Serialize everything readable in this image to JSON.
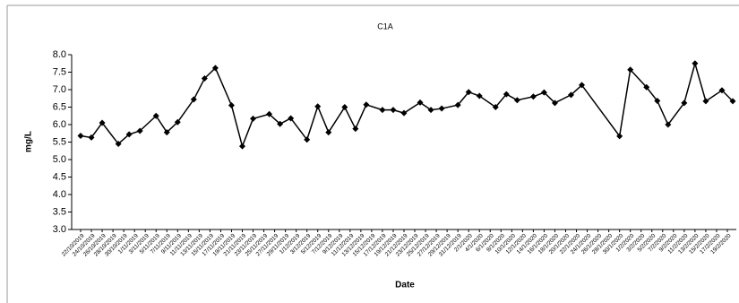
{
  "chart_data": {
    "type": "line",
    "title": "C1A",
    "x_label": "Date",
    "y_label": "mg/L",
    "x": [
      "22/10/2019",
      "24/10/2019",
      "26/10/2019",
      "29/10/2019",
      "31/10/2019",
      "2/11/2019",
      "5/11/2019",
      "7/11/2019",
      "9/11/2019",
      "12/11/2019",
      "14/11/2019",
      "16/11/2019",
      "19/11/2019",
      "21/11/2019",
      "23/11/2019",
      "26/11/2019",
      "28/11/2019",
      "30/11/2019",
      "3/12/2019",
      "5/12/2019",
      "7/12/2019",
      "10/12/2019",
      "12/12/2019",
      "14/12/2019",
      "17/12/2019",
      "19/12/2019",
      "21/12/2019",
      "24/12/2019",
      "26/12/2019",
      "28/12/2019",
      "31/12/2019",
      "2/1/2020",
      "4/1/2020",
      "7/1/2020",
      "9/1/2020",
      "11/1/2020",
      "14/1/2020",
      "16/1/2020",
      "18/1/2020",
      "21/1/2020",
      "23/1/2020",
      "30/1/2020",
      "1/2/2020",
      "4/2/2020",
      "6/2/2020",
      "8/2/2020",
      "11/2/2020",
      "13/2/2020",
      "15/2/2020",
      "18/2/2020",
      "20/2/2020"
    ],
    "series": [
      {
        "name": "C1A",
        "color": "#000000",
        "values": [
          5.68,
          5.63,
          6.05,
          5.45,
          5.72,
          5.82,
          6.25,
          5.78,
          6.07,
          6.72,
          7.32,
          7.62,
          6.55,
          5.38,
          6.17,
          6.3,
          6.02,
          6.18,
          5.57,
          6.52,
          5.78,
          6.5,
          5.88,
          6.57,
          6.42,
          6.42,
          6.33,
          6.63,
          6.42,
          6.46,
          6.56,
          6.93,
          6.82,
          6.5,
          6.87,
          6.7,
          6.8,
          6.92,
          6.62,
          6.85,
          7.13,
          5.67,
          7.57,
          7.07,
          6.68,
          6.0,
          6.62,
          7.75,
          6.67,
          6.98,
          6.67
        ]
      }
    ],
    "xlim": [
      "22/10/2019",
      "20/2/2020"
    ],
    "xticks": [
      "22/10/2019",
      "24/10/2019",
      "26/10/2019",
      "28/10/2019",
      "30/10/2019",
      "1/11/2019",
      "3/11/2019",
      "5/11/2019",
      "7/11/2019",
      "9/11/2019",
      "11/11/2019",
      "13/11/2019",
      "15/11/2019",
      "17/11/2019",
      "19/11/2019",
      "21/11/2019",
      "23/11/2019",
      "25/11/2019",
      "27/11/2019",
      "29/11/2019",
      "1/12/2019",
      "3/12/2019",
      "5/12/2019",
      "7/12/2019",
      "9/12/2019",
      "11/12/2019",
      "13/12/2019",
      "15/12/2019",
      "17/12/2019",
      "19/12/2019",
      "21/12/2019",
      "23/12/2019",
      "25/12/2019",
      "27/12/2019",
      "29/12/2019",
      "31/12/2019",
      "2/1/2020",
      "4/1/2020",
      "6/1/2020",
      "8/1/2020",
      "10/1/2020",
      "12/1/2020",
      "14/1/2020",
      "16/1/2020",
      "18/1/2020",
      "20/1/2020",
      "22/1/2020",
      "24/1/2020",
      "26/1/2020",
      "28/1/2020",
      "30/1/2020",
      "1/2/2020",
      "3/2/2020",
      "5/2/2020",
      "7/2/2020",
      "9/2/2020",
      "11/2/2020",
      "13/2/2020",
      "15/2/2020",
      "17/2/2020",
      "19/2/2020"
    ],
    "ylim": [
      3,
      8
    ],
    "yticks": [
      {
        "value": 3,
        "label": "3.0"
      },
      {
        "value": 3.5,
        "label": "3.5"
      },
      {
        "value": 4,
        "label": "4.0"
      },
      {
        "value": 4.5,
        "label": "4.5"
      },
      {
        "value": 5,
        "label": "5.0"
      },
      {
        "value": 5.5,
        "label": "5.5"
      },
      {
        "value": 6,
        "label": "6.0"
      },
      {
        "value": 6.5,
        "label": "6.5"
      },
      {
        "value": 7,
        "label": "7.0"
      },
      {
        "value": 7.5,
        "label": "7.5"
      },
      {
        "value": 8,
        "label": "8.0"
      }
    ],
    "grid": false
  }
}
